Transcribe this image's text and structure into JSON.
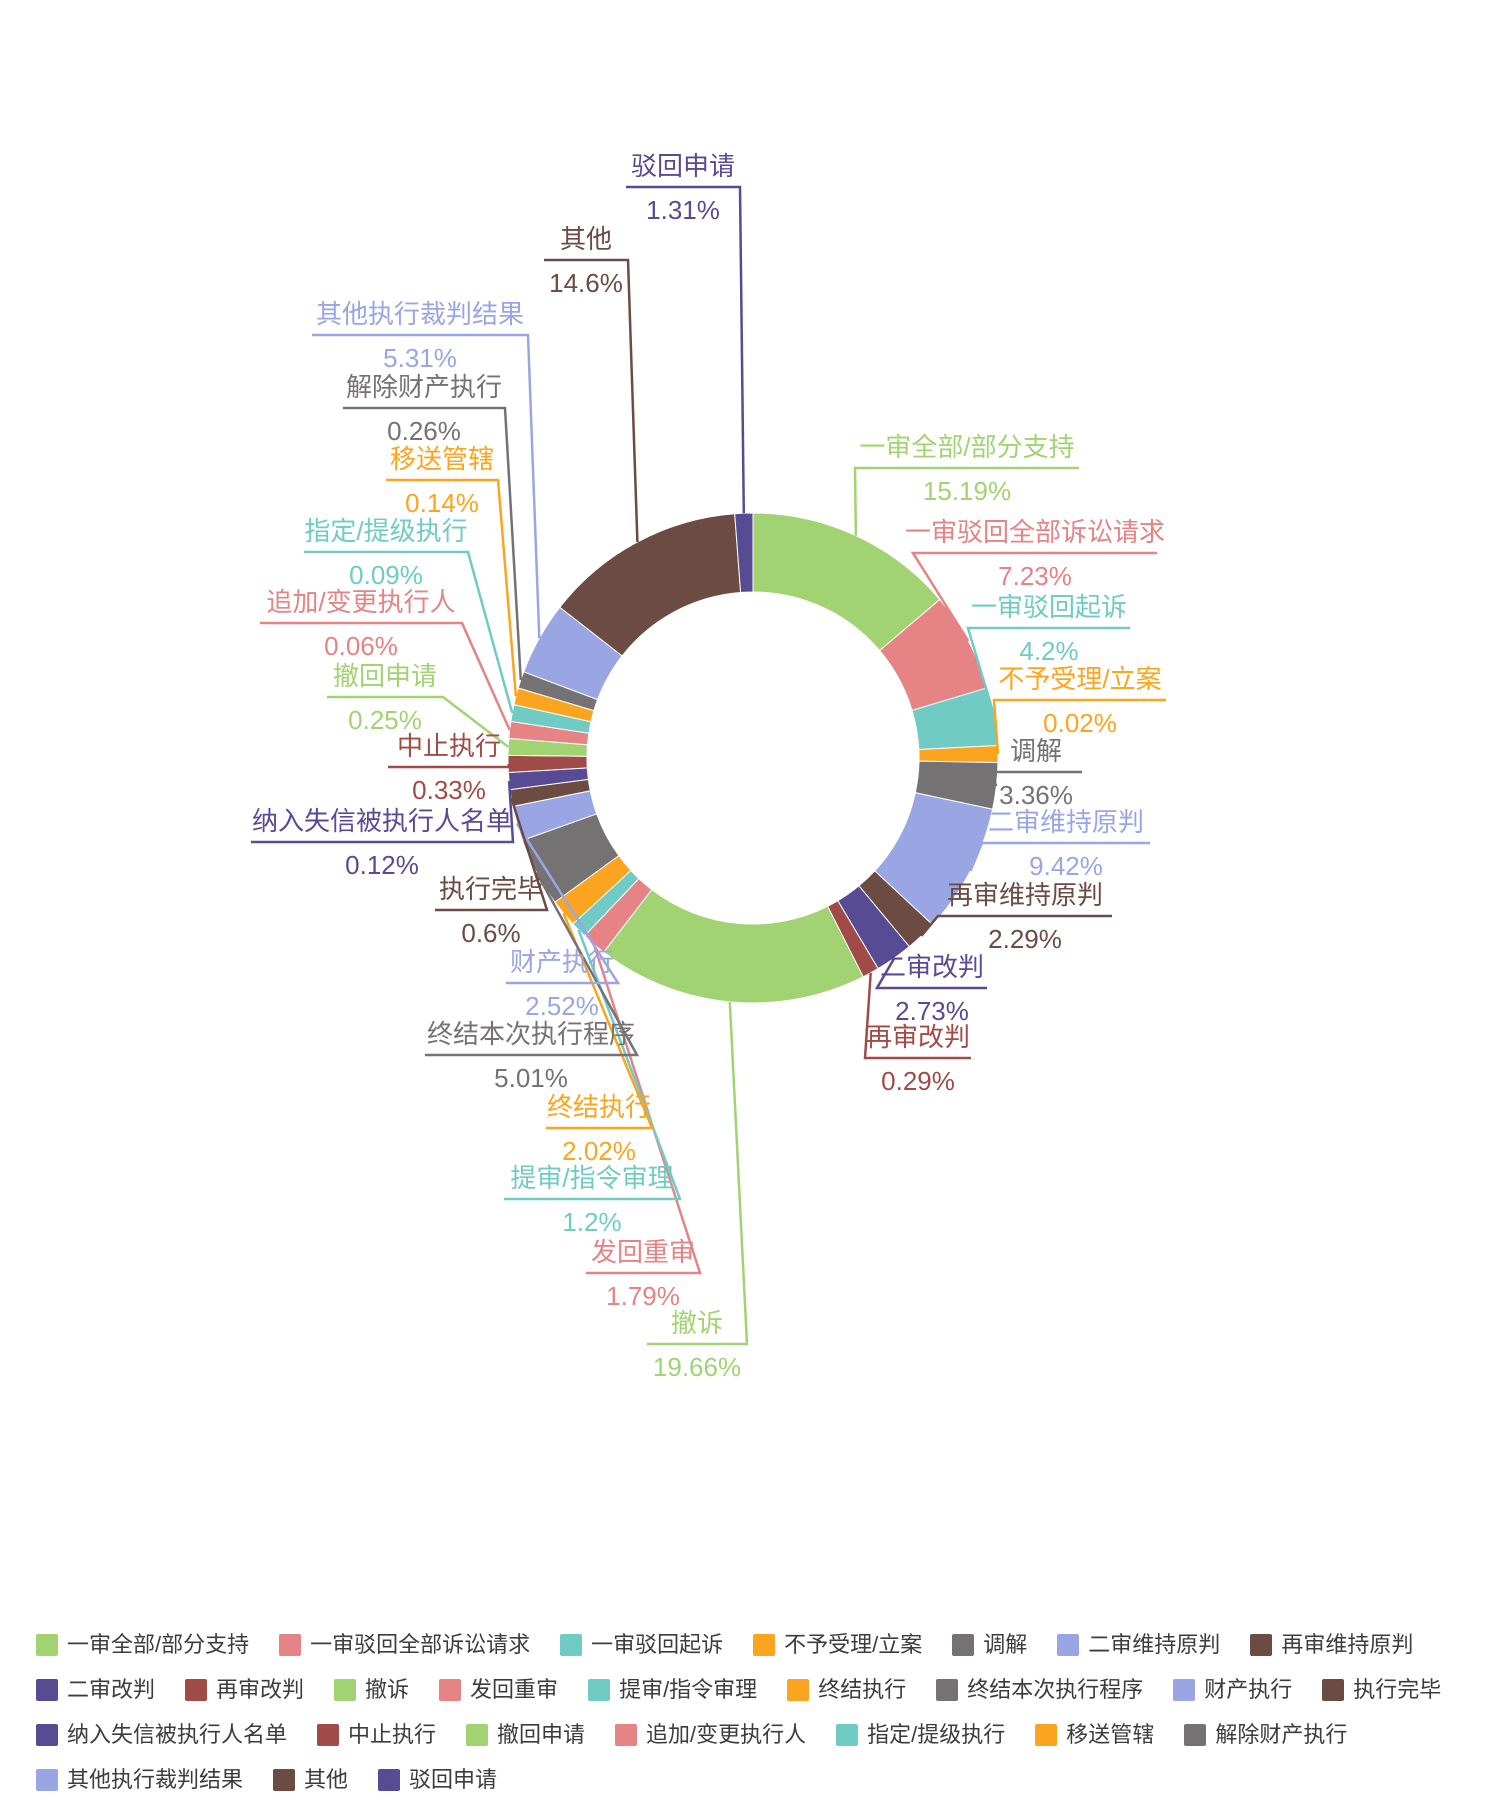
{
  "chart_data": {
    "type": "pie",
    "subtype": "donut",
    "title": "",
    "unit": "%",
    "legend_position": "bottom",
    "background": "#ffffff",
    "palette": [
      "#a2d373",
      "#e58385",
      "#70cbc4",
      "#fba41f",
      "#757273",
      "#9aa6e3",
      "#6c4b43",
      "#574b94",
      "#a04b48"
    ],
    "slices": [
      {
        "name": "一审全部/部分支持",
        "value": 15.19,
        "pct_label": "15.19%",
        "color": "#a2d373"
      },
      {
        "name": "一审驳回全部诉讼请求",
        "value": 7.23,
        "pct_label": "7.23%",
        "color": "#e58385"
      },
      {
        "name": "一审驳回起诉",
        "value": 4.2,
        "pct_label": "4.2%",
        "color": "#70cbc4"
      },
      {
        "name": "不予受理/立案",
        "value": 0.02,
        "pct_label": "0.02%",
        "color": "#fba41f"
      },
      {
        "name": "调解",
        "value": 3.36,
        "pct_label": "3.36%",
        "color": "#757273"
      },
      {
        "name": "二审维持原判",
        "value": 9.42,
        "pct_label": "9.42%",
        "color": "#9aa6e3"
      },
      {
        "name": "再审维持原判",
        "value": 2.29,
        "pct_label": "2.29%",
        "color": "#6c4b43"
      },
      {
        "name": "二审改判",
        "value": 2.73,
        "pct_label": "2.73%",
        "color": "#574b94"
      },
      {
        "name": "再审改判",
        "value": 0.29,
        "pct_label": "0.29%",
        "color": "#a04b48"
      },
      {
        "name": "撤诉",
        "value": 19.66,
        "pct_label": "19.66%",
        "color": "#a2d373"
      },
      {
        "name": "发回重审",
        "value": 1.79,
        "pct_label": "1.79%",
        "color": "#e58385"
      },
      {
        "name": "提审/指令审理",
        "value": 1.2,
        "pct_label": "1.2%",
        "color": "#70cbc4"
      },
      {
        "name": "终结执行",
        "value": 2.02,
        "pct_label": "2.02%",
        "color": "#fba41f"
      },
      {
        "name": "终结本次执行程序",
        "value": 5.01,
        "pct_label": "5.01%",
        "color": "#757273"
      },
      {
        "name": "财产执行",
        "value": 2.52,
        "pct_label": "2.52%",
        "color": "#9aa6e3"
      },
      {
        "name": "执行完毕",
        "value": 0.6,
        "pct_label": "0.6%",
        "color": "#6c4b43"
      },
      {
        "name": "纳入失信被执行人名单",
        "value": 0.12,
        "pct_label": "0.12%",
        "color": "#574b94"
      },
      {
        "name": "中止执行",
        "value": 0.33,
        "pct_label": "0.33%",
        "color": "#a04b48"
      },
      {
        "name": "撤回申请",
        "value": 0.25,
        "pct_label": "0.25%",
        "color": "#a2d373"
      },
      {
        "name": "追加/变更执行人",
        "value": 0.06,
        "pct_label": "0.06%",
        "color": "#e58385"
      },
      {
        "name": "指定/提级执行",
        "value": 0.09,
        "pct_label": "0.09%",
        "color": "#70cbc4"
      },
      {
        "name": "移送管辖",
        "value": 0.14,
        "pct_label": "0.14%",
        "color": "#fba41f"
      },
      {
        "name": "解除财产执行",
        "value": 0.26,
        "pct_label": "0.26%",
        "color": "#757273"
      },
      {
        "name": "其他执行裁判结果",
        "value": 5.31,
        "pct_label": "5.31%",
        "color": "#9aa6e3"
      },
      {
        "name": "其他",
        "value": 14.6,
        "pct_label": "14.6%",
        "color": "#6c4b43"
      },
      {
        "name": "驳回申请",
        "value": 1.31,
        "pct_label": "1.31%",
        "color": "#574b94"
      }
    ]
  }
}
